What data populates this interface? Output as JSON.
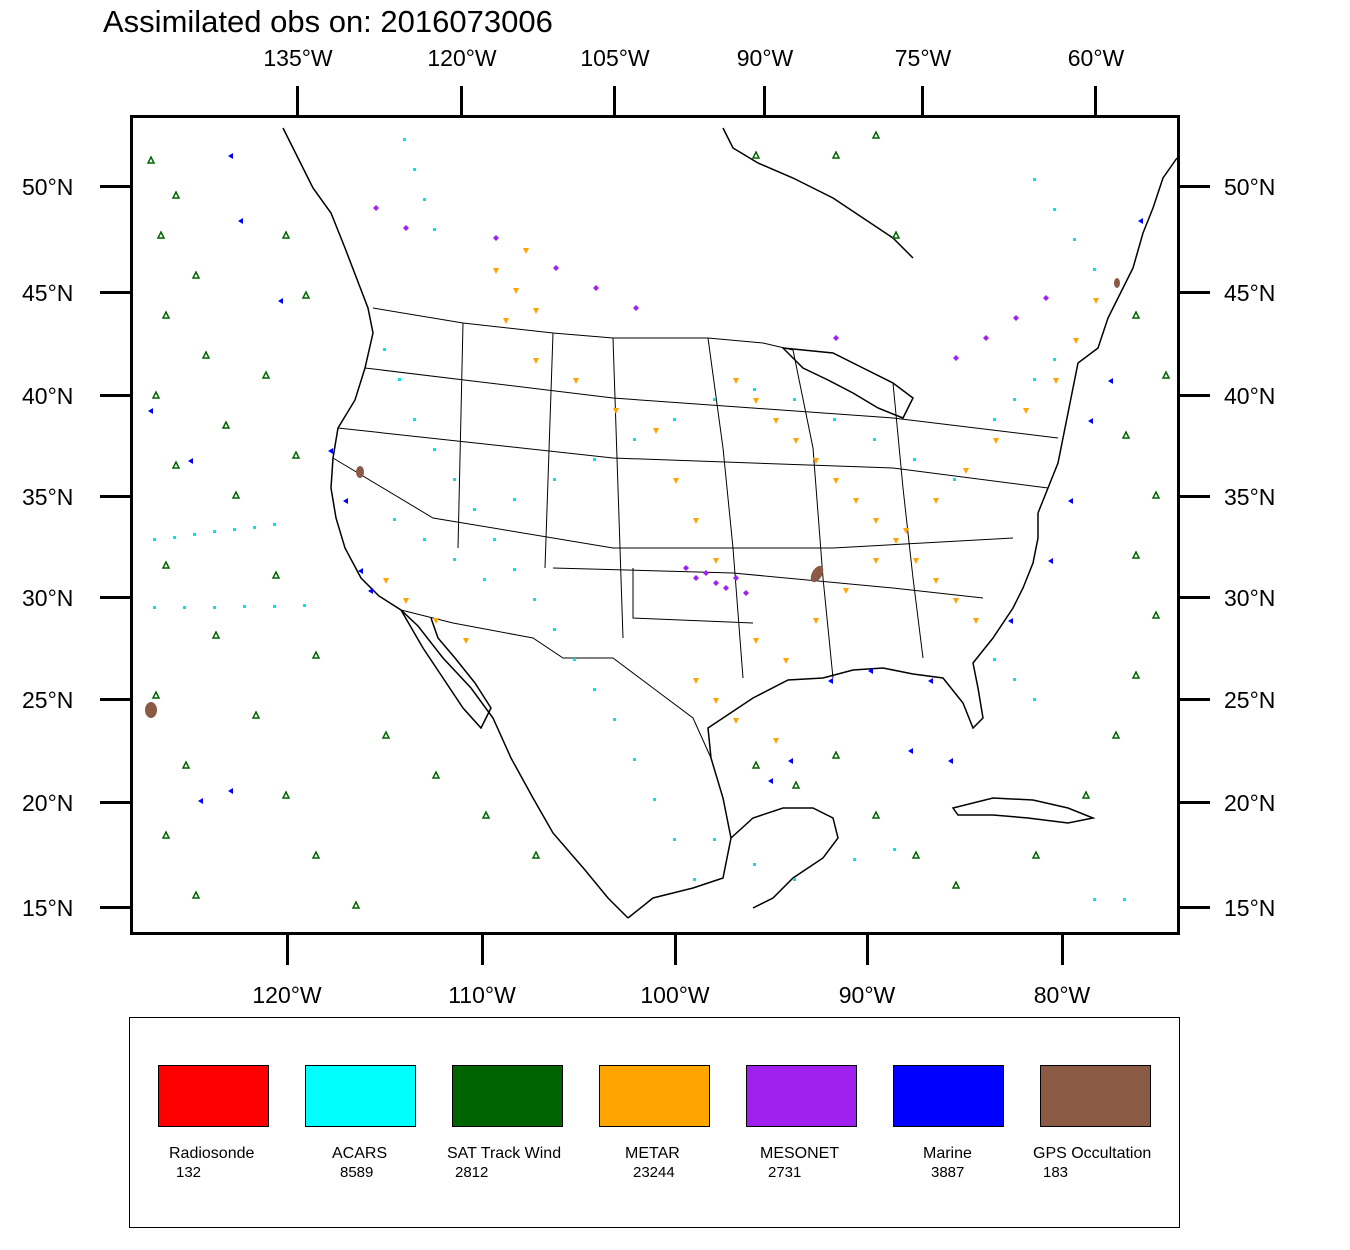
{
  "title": "Assimilated obs on: 2016073006",
  "axes": {
    "top_labels": [
      "135°W",
      "120°W",
      "105°W",
      "90°W",
      "75°W",
      "60°W"
    ],
    "bottom_labels": [
      "120°W",
      "110°W",
      "100°W",
      "90°W",
      "80°W"
    ],
    "left_labels": [
      "50°N",
      "45°N",
      "40°N",
      "35°N",
      "30°N",
      "25°N",
      "20°N",
      "15°N"
    ],
    "right_labels": [
      "50°N",
      "45°N",
      "40°N",
      "35°N",
      "30°N",
      "25°N",
      "20°N",
      "15°N"
    ]
  },
  "legend": [
    {
      "name": "Radiosonde",
      "count": "132",
      "color": "#ff0000"
    },
    {
      "name": "ACARS",
      "count": "8589",
      "color": "#00ffff"
    },
    {
      "name": "SAT Track Wind",
      "count": "2812",
      "color": "#006400"
    },
    {
      "name": "METAR",
      "count": "23244",
      "color": "#ffa500"
    },
    {
      "name": "MESONET",
      "count": "2731",
      "color": "#a020f0"
    },
    {
      "name": "Marine",
      "count": "3887",
      "color": "#0000ff"
    },
    {
      "name": "GPS Occultation",
      "count": "183",
      "color": "#8b5a44"
    }
  ]
}
